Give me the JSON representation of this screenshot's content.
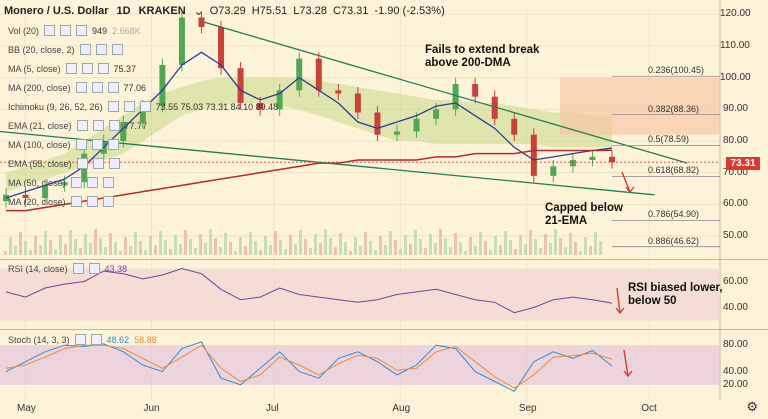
{
  "header": {
    "symbol": "Monero / U.S. Dollar",
    "interval": "1D",
    "exchange": "KRAKEN",
    "open": "O73.29",
    "high": "H75.51",
    "low": "L73.28",
    "close": "C73.31",
    "change": "-1.90 (-2.53%)"
  },
  "indicators": [
    {
      "label": "Vol (20)",
      "value": "949",
      "extra": "2.668K"
    },
    {
      "label": "BB (20, close, 2)",
      "value": ""
    },
    {
      "label": "MA (5, close)",
      "value": "75.37"
    },
    {
      "label": "MA (200, close)",
      "value": "77.06"
    },
    {
      "label": "Ichimoku (9, 26, 52, 26)",
      "value": "73.55 75.03 73.31 84.10 89.48"
    },
    {
      "label": "EMA (21, close)",
      "value": "77.77"
    },
    {
      "label": "MA (100, close)",
      "value": ""
    },
    {
      "label": "EMA (55, close)",
      "value": ""
    },
    {
      "label": "MA (50, close)",
      "value": ""
    },
    {
      "label": "MA (20, close)",
      "value": ""
    }
  ],
  "rsi": {
    "label": "RSI (14, close)",
    "value": "43.38"
  },
  "stoch": {
    "label": "Stoch (14, 3, 3)",
    "k": "48.62",
    "d": "58.88"
  },
  "annotations": {
    "break": "Fails to extend break above 200-DMA",
    "capped": "Capped below 21-EMA",
    "rsi": "RSI biased lower, below 50"
  },
  "last_price": "73.31",
  "price_axis": [
    "120.00",
    "110.00",
    "100.00",
    "90.00",
    "80.00",
    "70.00",
    "60.00",
    "50.00"
  ],
  "rsi_axis": [
    "60.00",
    "40.00"
  ],
  "stoch_axis": [
    "80.00",
    "40.00",
    "20.00"
  ],
  "time_axis": [
    "May",
    "Jun",
    "Jul",
    "Aug",
    "Sep",
    "Oct"
  ],
  "fib_levels": [
    {
      "label": "0.236(100.45)",
      "price": 100.45
    },
    {
      "label": "0.382(88.36)",
      "price": 88.36
    },
    {
      "label": "0.5(78.59)",
      "price": 78.59
    },
    {
      "label": "0.618(68.82)",
      "price": 68.82
    },
    {
      "label": "0.786(54.90)",
      "price": 54.9
    },
    {
      "label": "0.886(46.62)",
      "price": 46.62
    }
  ],
  "colors": {
    "up": "#53a753",
    "down": "#c8413a",
    "ema21": "#2b3d9c",
    "ma200": "#b52a2a",
    "trend": "#1e7f5a",
    "rsi": "#7a3fa0",
    "stochK": "#2a8fd6",
    "stochD": "#f08a3a"
  },
  "chart_data": {
    "type": "candlestick",
    "title": "Monero / U.S. Dollar 1D KRAKEN",
    "ylim": [
      44,
      122
    ],
    "x_range_days": 176,
    "close_by_week": [
      63,
      62,
      66,
      67,
      76,
      80,
      86,
      91,
      104,
      119,
      116,
      103,
      92,
      90,
      96,
      106,
      96,
      95,
      89,
      82,
      83,
      87,
      90,
      98,
      94,
      87,
      82,
      69,
      72,
      74,
      75,
      73.31
    ],
    "ema21": [
      62,
      64,
      66,
      68,
      72,
      78,
      84,
      90,
      96,
      104,
      108,
      104,
      96,
      93,
      95,
      100,
      96,
      92,
      86,
      84,
      86,
      88,
      91,
      92,
      88,
      84,
      78,
      74,
      75,
      76,
      77,
      77.77
    ],
    "ma200": [
      58,
      58,
      59,
      60,
      61,
      62,
      63,
      64,
      65,
      66,
      67,
      68,
      69,
      70,
      71,
      72,
      73,
      73,
      74,
      74,
      74,
      74,
      75,
      75,
      76,
      76,
      76,
      77,
      77,
      77,
      77,
      77.06
    ],
    "cloud_top": [
      70,
      72,
      74,
      76,
      80,
      84,
      88,
      92,
      95,
      97,
      99,
      100,
      100,
      100,
      100,
      100,
      99,
      98,
      97,
      96,
      95,
      94,
      93,
      93,
      92,
      92,
      91,
      90,
      89,
      89,
      88,
      88
    ],
    "cloud_bottom": [
      64,
      66,
      68,
      70,
      72,
      74,
      76,
      80,
      84,
      88,
      90,
      91,
      92,
      92,
      91,
      90,
      88,
      86,
      84,
      82,
      80,
      80,
      79,
      79,
      79,
      79,
      79,
      79,
      78,
      78,
      78,
      78
    ],
    "trendline_upper": [
      [
        50,
        117.5
      ],
      [
        168,
        73
      ]
    ],
    "trendline_lower": [
      [
        0,
        83
      ],
      [
        160,
        63
      ]
    ],
    "rsi_ylim": [
      25,
      75
    ],
    "rsi": [
      52,
      48,
      55,
      58,
      60,
      68,
      66,
      62,
      65,
      70,
      66,
      54,
      46,
      48,
      55,
      50,
      48,
      46,
      44,
      46,
      50,
      52,
      54,
      50,
      46,
      44,
      36,
      40,
      46,
      48,
      46,
      43.38
    ],
    "stoch_ylim": [
      0,
      100
    ],
    "stoch_k": [
      40,
      55,
      70,
      80,
      78,
      82,
      70,
      50,
      40,
      75,
      85,
      30,
      20,
      45,
      70,
      40,
      30,
      60,
      70,
      55,
      35,
      50,
      80,
      75,
      40,
      25,
      10,
      55,
      70,
      60,
      72,
      48.62
    ],
    "stoch_d": [
      45,
      50,
      62,
      75,
      80,
      80,
      75,
      60,
      45,
      62,
      80,
      45,
      25,
      35,
      62,
      50,
      35,
      52,
      65,
      60,
      42,
      45,
      70,
      78,
      55,
      32,
      15,
      35,
      62,
      64,
      68,
      58.88
    ]
  }
}
